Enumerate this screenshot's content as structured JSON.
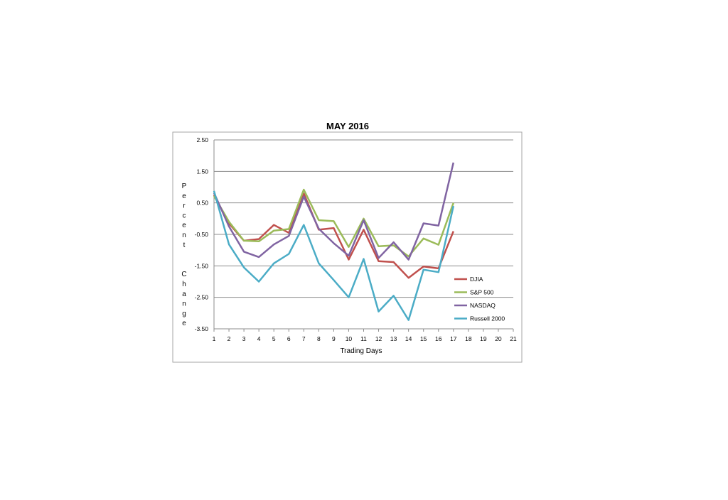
{
  "chart_data": {
    "type": "line",
    "title": "MAY 2016",
    "xlabel": "Trading  Days",
    "ylabel": "Percent  Change",
    "x": [
      1,
      2,
      3,
      4,
      5,
      6,
      7,
      8,
      9,
      10,
      11,
      12,
      13,
      14,
      15,
      16,
      17
    ],
    "x_ticks": [
      1,
      2,
      3,
      4,
      5,
      6,
      7,
      8,
      9,
      10,
      11,
      12,
      13,
      14,
      15,
      16,
      17,
      18,
      19,
      20,
      21
    ],
    "x_tick_labels": [
      "1",
      "2",
      "3",
      "4",
      "5",
      "6",
      "7",
      "8",
      "9",
      "10",
      "11",
      "12",
      "13",
      "14",
      "15",
      "16",
      "17",
      "18",
      "19",
      "20",
      "21"
    ],
    "xlim": [
      1,
      21
    ],
    "y_ticks": [
      2.5,
      1.5,
      0.5,
      -0.5,
      -1.5,
      -2.5,
      -3.5
    ],
    "y_tick_labels": [
      "2.50",
      "1.50",
      "0.50",
      "-0.50",
      "-1.50",
      "-2.50",
      "-3.50"
    ],
    "ylim": [
      -3.5,
      2.5
    ],
    "grid": true,
    "legend_position": "lower-right",
    "positive_tick_color": "#000000",
    "negative_tick_color": "#c00000",
    "series": [
      {
        "name": "DJIA",
        "color": "#c0504d",
        "values": [
          0.75,
          -0.15,
          -0.7,
          -0.65,
          -0.2,
          -0.45,
          0.8,
          -0.35,
          -0.3,
          -1.3,
          -0.35,
          -1.35,
          -1.38,
          -1.88,
          -1.52,
          -1.58,
          -0.4
        ]
      },
      {
        "name": "S&P 500",
        "color": "#9bbb59",
        "values": [
          0.72,
          -0.1,
          -0.7,
          -0.72,
          -0.38,
          -0.33,
          0.92,
          -0.05,
          -0.08,
          -0.9,
          0.0,
          -0.88,
          -0.85,
          -1.2,
          -0.63,
          -0.83,
          0.5
        ]
      },
      {
        "name": "NASDAQ",
        "color": "#8064a2",
        "values": [
          0.82,
          -0.25,
          -1.05,
          -1.22,
          -0.82,
          -0.55,
          0.7,
          -0.32,
          -0.78,
          -1.18,
          -0.05,
          -1.25,
          -0.75,
          -1.3,
          -0.15,
          -0.22,
          1.78
        ]
      },
      {
        "name": "Russell 2000",
        "color": "#4bacc6",
        "values": [
          0.88,
          -0.82,
          -1.55,
          -2.0,
          -1.42,
          -1.12,
          -0.2,
          -1.42,
          -1.95,
          -2.5,
          -1.28,
          -2.95,
          -2.45,
          -3.22,
          -1.62,
          -1.7,
          0.4
        ]
      }
    ]
  }
}
